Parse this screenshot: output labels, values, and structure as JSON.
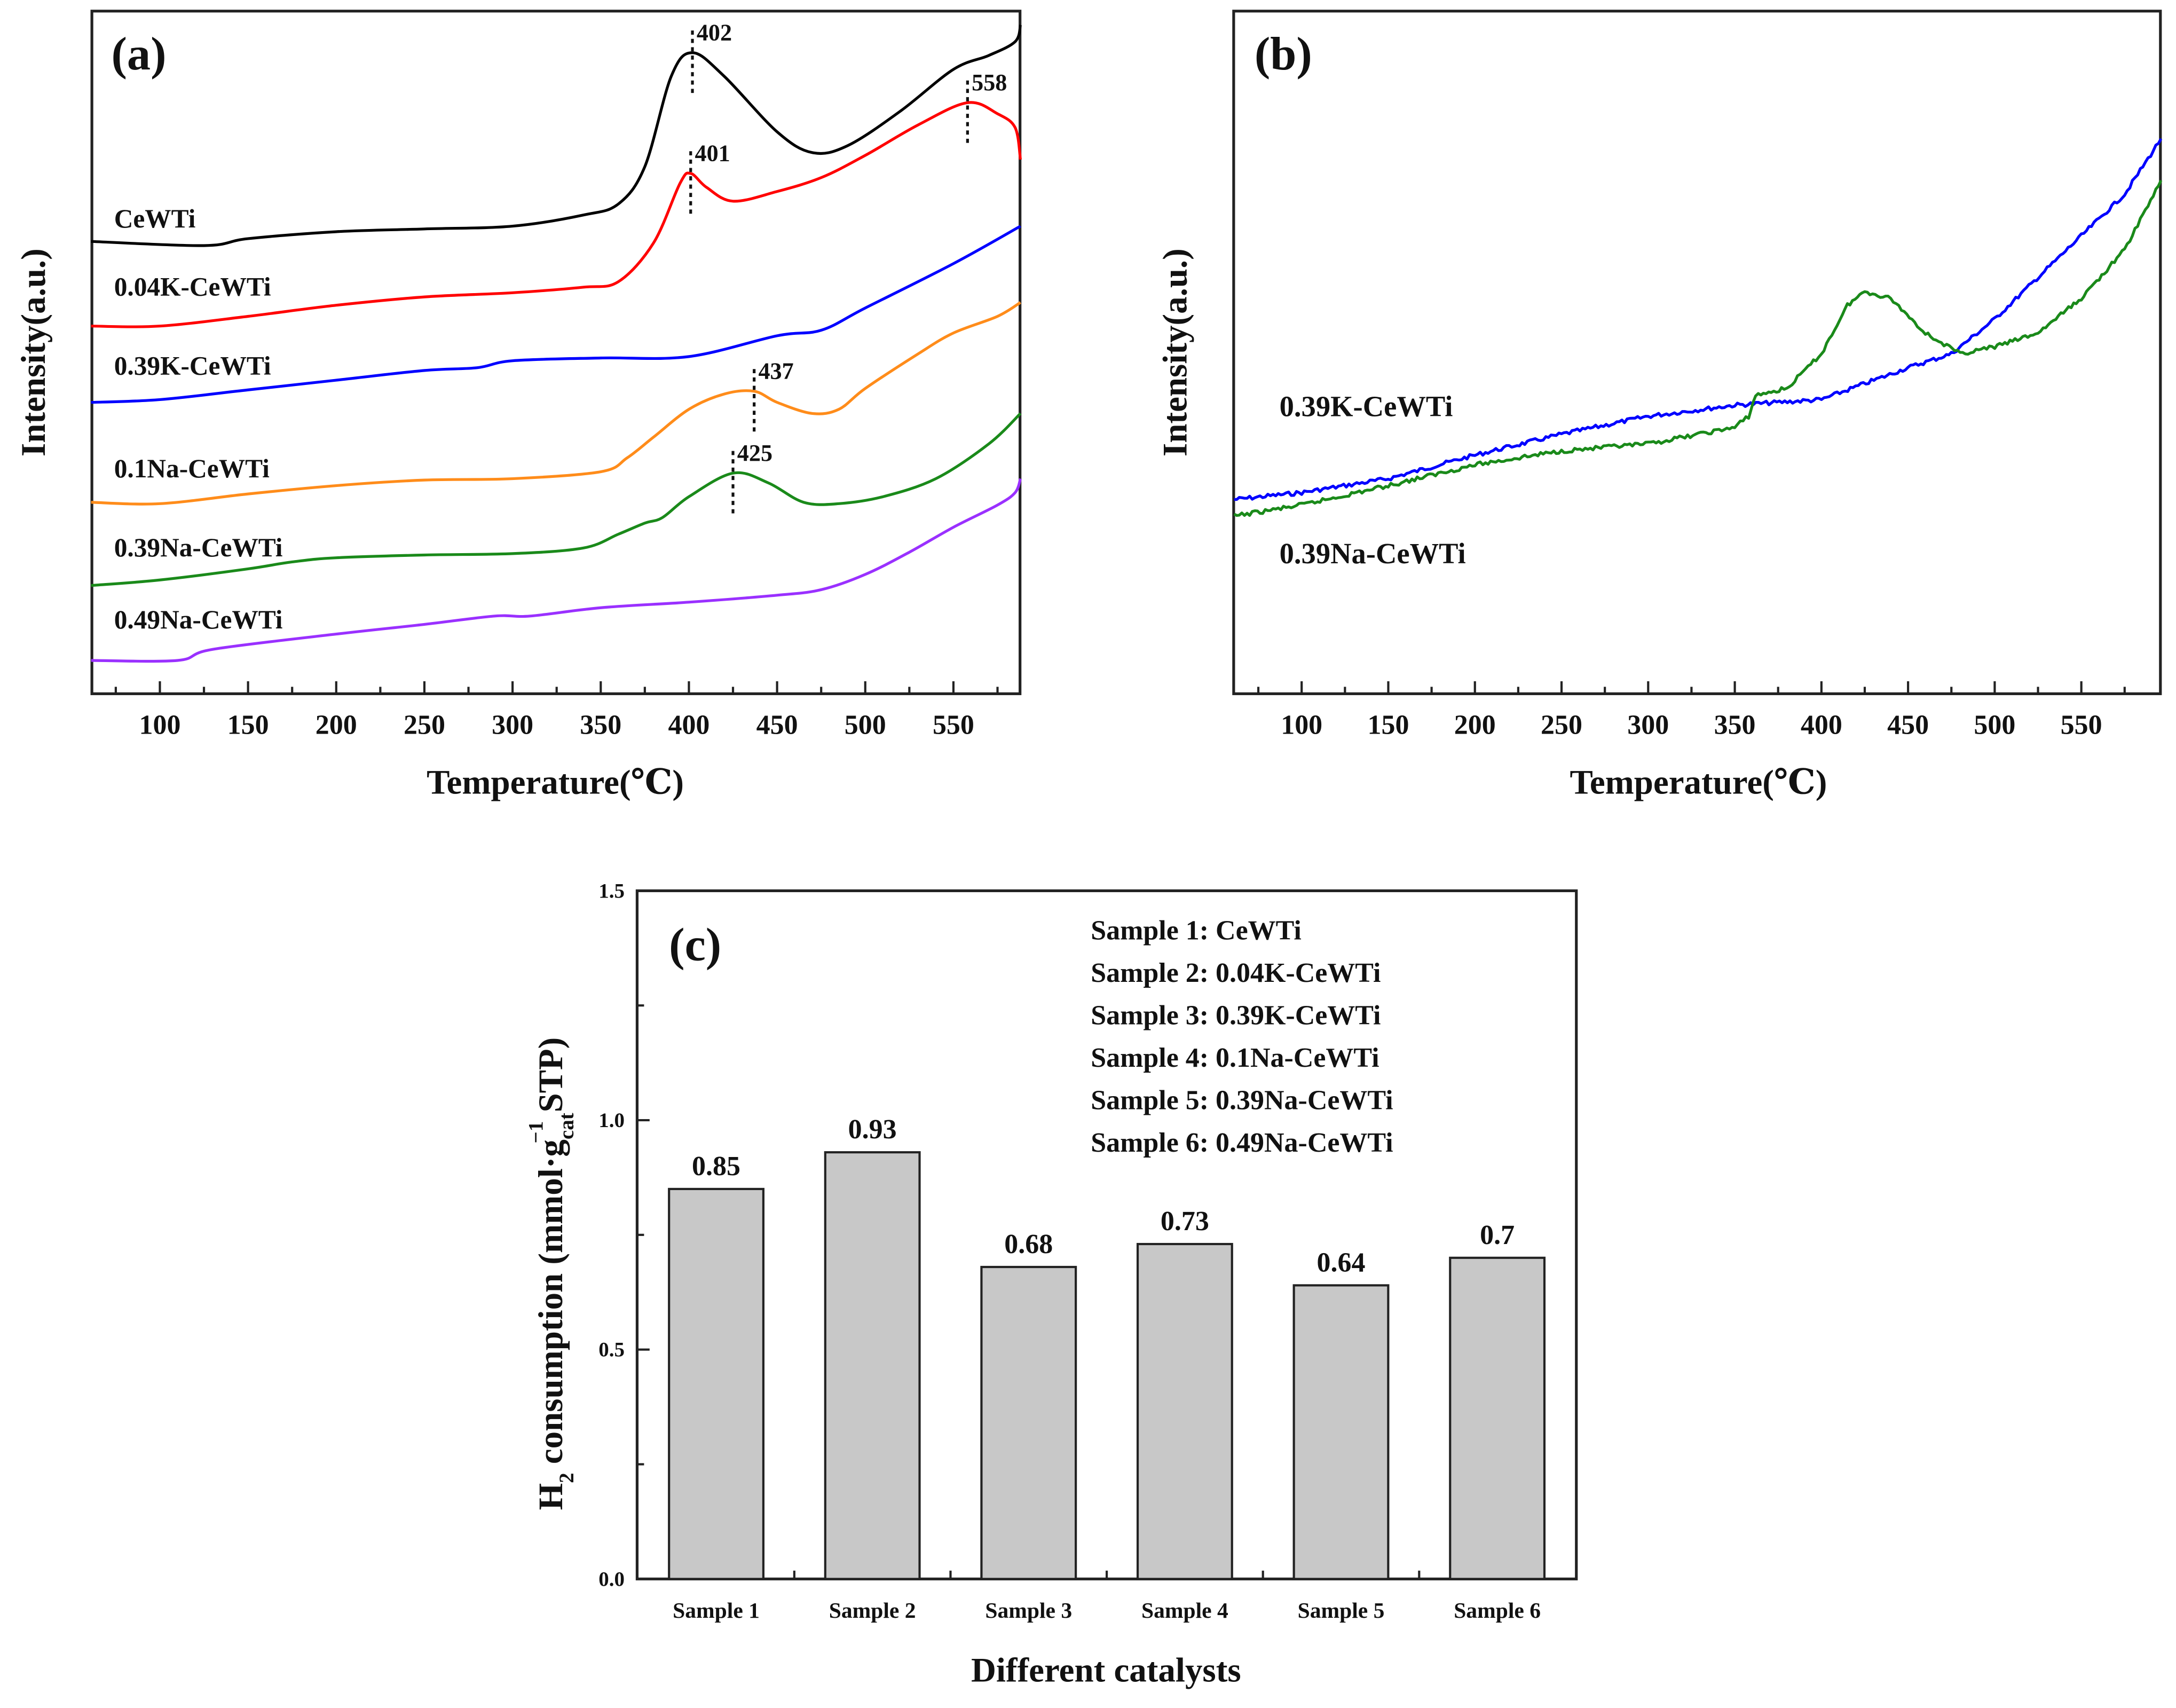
{
  "chart_data": [
    {
      "type": "line",
      "panel_label": "(a)",
      "xlabel": "Temperature(℃)",
      "ylabel": "Intensity(a.u.)",
      "xlim": [
        61,
        588
      ],
      "ylim": [
        0,
        98.4
      ],
      "xticks": [
        100,
        150,
        200,
        250,
        300,
        350,
        400,
        450,
        500,
        550
      ],
      "xtick_labels": [
        "100",
        "150",
        "200",
        "250",
        "300",
        "350",
        "400",
        "450",
        "500",
        "550"
      ],
      "series": [
        {
          "name": "CeWTi",
          "color": "#000000",
          "points": [
            [
              61,
              65.2
            ],
            [
              125,
              64.6
            ],
            [
              150,
              65.6
            ],
            [
              200,
              66.6
            ],
            [
              250,
              67
            ],
            [
              300,
              67.4
            ],
            [
              340,
              69
            ],
            [
              360,
              70.6
            ],
            [
              375,
              76
            ],
            [
              390,
              89
            ],
            [
              402,
              92.4
            ],
            [
              420,
              89
            ],
            [
              450,
              81
            ],
            [
              470,
              78
            ],
            [
              490,
              79
            ],
            [
              520,
              84
            ],
            [
              550,
              90
            ],
            [
              570,
              92
            ],
            [
              585,
              94
            ],
            [
              588,
              96.4
            ]
          ]
        },
        {
          "name": "0.04K-CeWTi",
          "color": "#ff0000",
          "points": [
            [
              61,
              53
            ],
            [
              100,
              53
            ],
            [
              150,
              54.4
            ],
            [
              200,
              56
            ],
            [
              250,
              57.2
            ],
            [
              300,
              57.8
            ],
            [
              340,
              58.6
            ],
            [
              360,
              59.4
            ],
            [
              380,
              65
            ],
            [
              395,
              73.6
            ],
            [
              401,
              75
            ],
            [
              410,
              73
            ],
            [
              425,
              71
            ],
            [
              450,
              72.4
            ],
            [
              475,
              74.4
            ],
            [
              500,
              77.6
            ],
            [
              530,
              82
            ],
            [
              558,
              85.2
            ],
            [
              575,
              83.6
            ],
            [
              585,
              81.6
            ],
            [
              588,
              77
            ]
          ]
        },
        {
          "name": "0.39K-CeWTi",
          "color": "#0000ff",
          "points": [
            [
              61,
              42
            ],
            [
              100,
              42.4
            ],
            [
              150,
              43.8
            ],
            [
              200,
              45.2
            ],
            [
              250,
              46.6
            ],
            [
              280,
              47
            ],
            [
              300,
              48
            ],
            [
              350,
              48.4
            ],
            [
              400,
              48.6
            ],
            [
              450,
              51.6
            ],
            [
              475,
              52.4
            ],
            [
              500,
              55.6
            ],
            [
              550,
              62
            ],
            [
              588,
              67.4
            ]
          ]
        },
        {
          "name": "0.1Na-CeWTi",
          "color": "#ff8c1a",
          "points": [
            [
              61,
              27.6
            ],
            [
              100,
              27.4
            ],
            [
              150,
              28.8
            ],
            [
              200,
              30
            ],
            [
              250,
              30.8
            ],
            [
              300,
              31
            ],
            [
              350,
              32
            ],
            [
              365,
              34
            ],
            [
              380,
              37
            ],
            [
              400,
              41
            ],
            [
              420,
              43.2
            ],
            [
              437,
              43.6
            ],
            [
              450,
              42
            ],
            [
              470,
              40.4
            ],
            [
              485,
              41
            ],
            [
              500,
              44
            ],
            [
              530,
              49
            ],
            [
              550,
              52
            ],
            [
              575,
              54.4
            ],
            [
              588,
              56.4
            ]
          ]
        },
        {
          "name": "0.39Na-CeWTi",
          "color": "#1a8a1a",
          "points": [
            [
              61,
              15.6
            ],
            [
              100,
              16.4
            ],
            [
              150,
              18
            ],
            [
              175,
              19
            ],
            [
              200,
              19.6
            ],
            [
              250,
              20
            ],
            [
              300,
              20.2
            ],
            [
              340,
              21
            ],
            [
              360,
              23
            ],
            [
              375,
              24.6
            ],
            [
              385,
              25.4
            ],
            [
              400,
              28.4
            ],
            [
              425,
              31.8
            ],
            [
              445,
              30.4
            ],
            [
              465,
              27.6
            ],
            [
              485,
              27.4
            ],
            [
              510,
              28.4
            ],
            [
              540,
              31
            ],
            [
              570,
              36
            ],
            [
              588,
              40.4
            ]
          ]
        },
        {
          "name": "0.49Na-CeWTi",
          "color": "#9a30ff",
          "points": [
            [
              61,
              4.8
            ],
            [
              110,
              4.8
            ],
            [
              130,
              6.4
            ],
            [
              200,
              8.6
            ],
            [
              250,
              10
            ],
            [
              290,
              11.2
            ],
            [
              310,
              11.2
            ],
            [
              350,
              12.4
            ],
            [
              400,
              13.2
            ],
            [
              450,
              14.2
            ],
            [
              475,
              15
            ],
            [
              500,
              17.2
            ],
            [
              525,
              20.4
            ],
            [
              550,
              24
            ],
            [
              575,
              27.2
            ],
            [
              585,
              29
            ],
            [
              588,
              31
            ]
          ]
        }
      ],
      "annotations": [
        {
          "series": 0,
          "x": 402,
          "y": 92.4,
          "label": "402"
        },
        {
          "series": 1,
          "x": 558,
          "y": 85.2,
          "label": "558"
        },
        {
          "series": 1,
          "x": 401,
          "y": 75,
          "label": "401"
        },
        {
          "series": 3,
          "x": 437,
          "y": 43.6,
          "label": "437"
        },
        {
          "series": 4,
          "x": 425,
          "y": 31.8,
          "label": "425"
        }
      ]
    },
    {
      "type": "line",
      "panel_label": "(b)",
      "xlabel": "Temperature(℃)",
      "ylabel": "Intensity(a.u.)",
      "xlim": [
        61,
        596
      ],
      "ylim": [
        0,
        98.4
      ],
      "xticks": [
        100,
        150,
        200,
        250,
        300,
        350,
        400,
        450,
        500,
        550
      ],
      "xtick_labels": [
        "100",
        "150",
        "200",
        "250",
        "300",
        "350",
        "400",
        "450",
        "500",
        "550"
      ],
      "series": [
        {
          "name": "0.39K-CeWTi",
          "color": "#0000ff",
          "points": [
            [
              61,
              28
            ],
            [
              100,
              29
            ],
            [
              150,
              31
            ],
            [
              200,
              34.4
            ],
            [
              250,
              37.4
            ],
            [
              300,
              40
            ],
            [
              350,
              41.6
            ],
            [
              400,
              42.4
            ],
            [
              450,
              47
            ],
            [
              475,
              49
            ],
            [
              500,
              54
            ],
            [
              550,
              66
            ],
            [
              575,
              72
            ],
            [
              596,
              80
            ]
          ]
        },
        {
          "name": "0.39Na-CeWTi",
          "color": "#1a8a1a",
          "points": [
            [
              61,
              25.6
            ],
            [
              100,
              27.2
            ],
            [
              150,
              30
            ],
            [
              200,
              33
            ],
            [
              250,
              35
            ],
            [
              300,
              36
            ],
            [
              350,
              38.4
            ],
            [
              358,
              40
            ],
            [
              362,
              43
            ],
            [
              380,
              44
            ],
            [
              400,
              49
            ],
            [
              415,
              56
            ],
            [
              425,
              58
            ],
            [
              440,
              57
            ],
            [
              460,
              52
            ],
            [
              480,
              49
            ],
            [
              500,
              50
            ],
            [
              525,
              52
            ],
            [
              550,
              57
            ],
            [
              575,
              64
            ],
            [
              596,
              74
            ]
          ]
        }
      ]
    },
    {
      "type": "bar",
      "panel_label": "(c)",
      "xlabel": "Different catalysts",
      "ylabel_parts": {
        "h": "H",
        "sub2": "2",
        "main": " consumption (mmol·g",
        "subcat": "cat",
        "sup": "−1",
        "end": " STP)"
      },
      "ylim": [
        0,
        1.5
      ],
      "yticks": [
        0.0,
        0.5,
        1.0,
        1.5
      ],
      "ytick_labels": [
        "0.0",
        "0.5",
        "1.0",
        "1.5"
      ],
      "categories": [
        "Sample 1",
        "Sample 2",
        "Sample 3",
        "Sample 4",
        "Sample 5",
        "Sample 6"
      ],
      "values": [
        0.85,
        0.93,
        0.68,
        0.73,
        0.64,
        0.7
      ],
      "value_labels": [
        "0.85",
        "0.93",
        "0.68",
        "0.73",
        "0.64",
        "0.7"
      ],
      "bar_color": "#c8c8c8",
      "legend": [
        "Sample 1: CeWTi",
        "Sample 2: 0.04K-CeWTi",
        "Sample 3: 0.39K-CeWTi",
        "Sample 4: 0.1Na-CeWTi",
        "Sample 5: 0.39Na-CeWTi",
        "Sample 6: 0.49Na-CeWTi"
      ]
    }
  ]
}
